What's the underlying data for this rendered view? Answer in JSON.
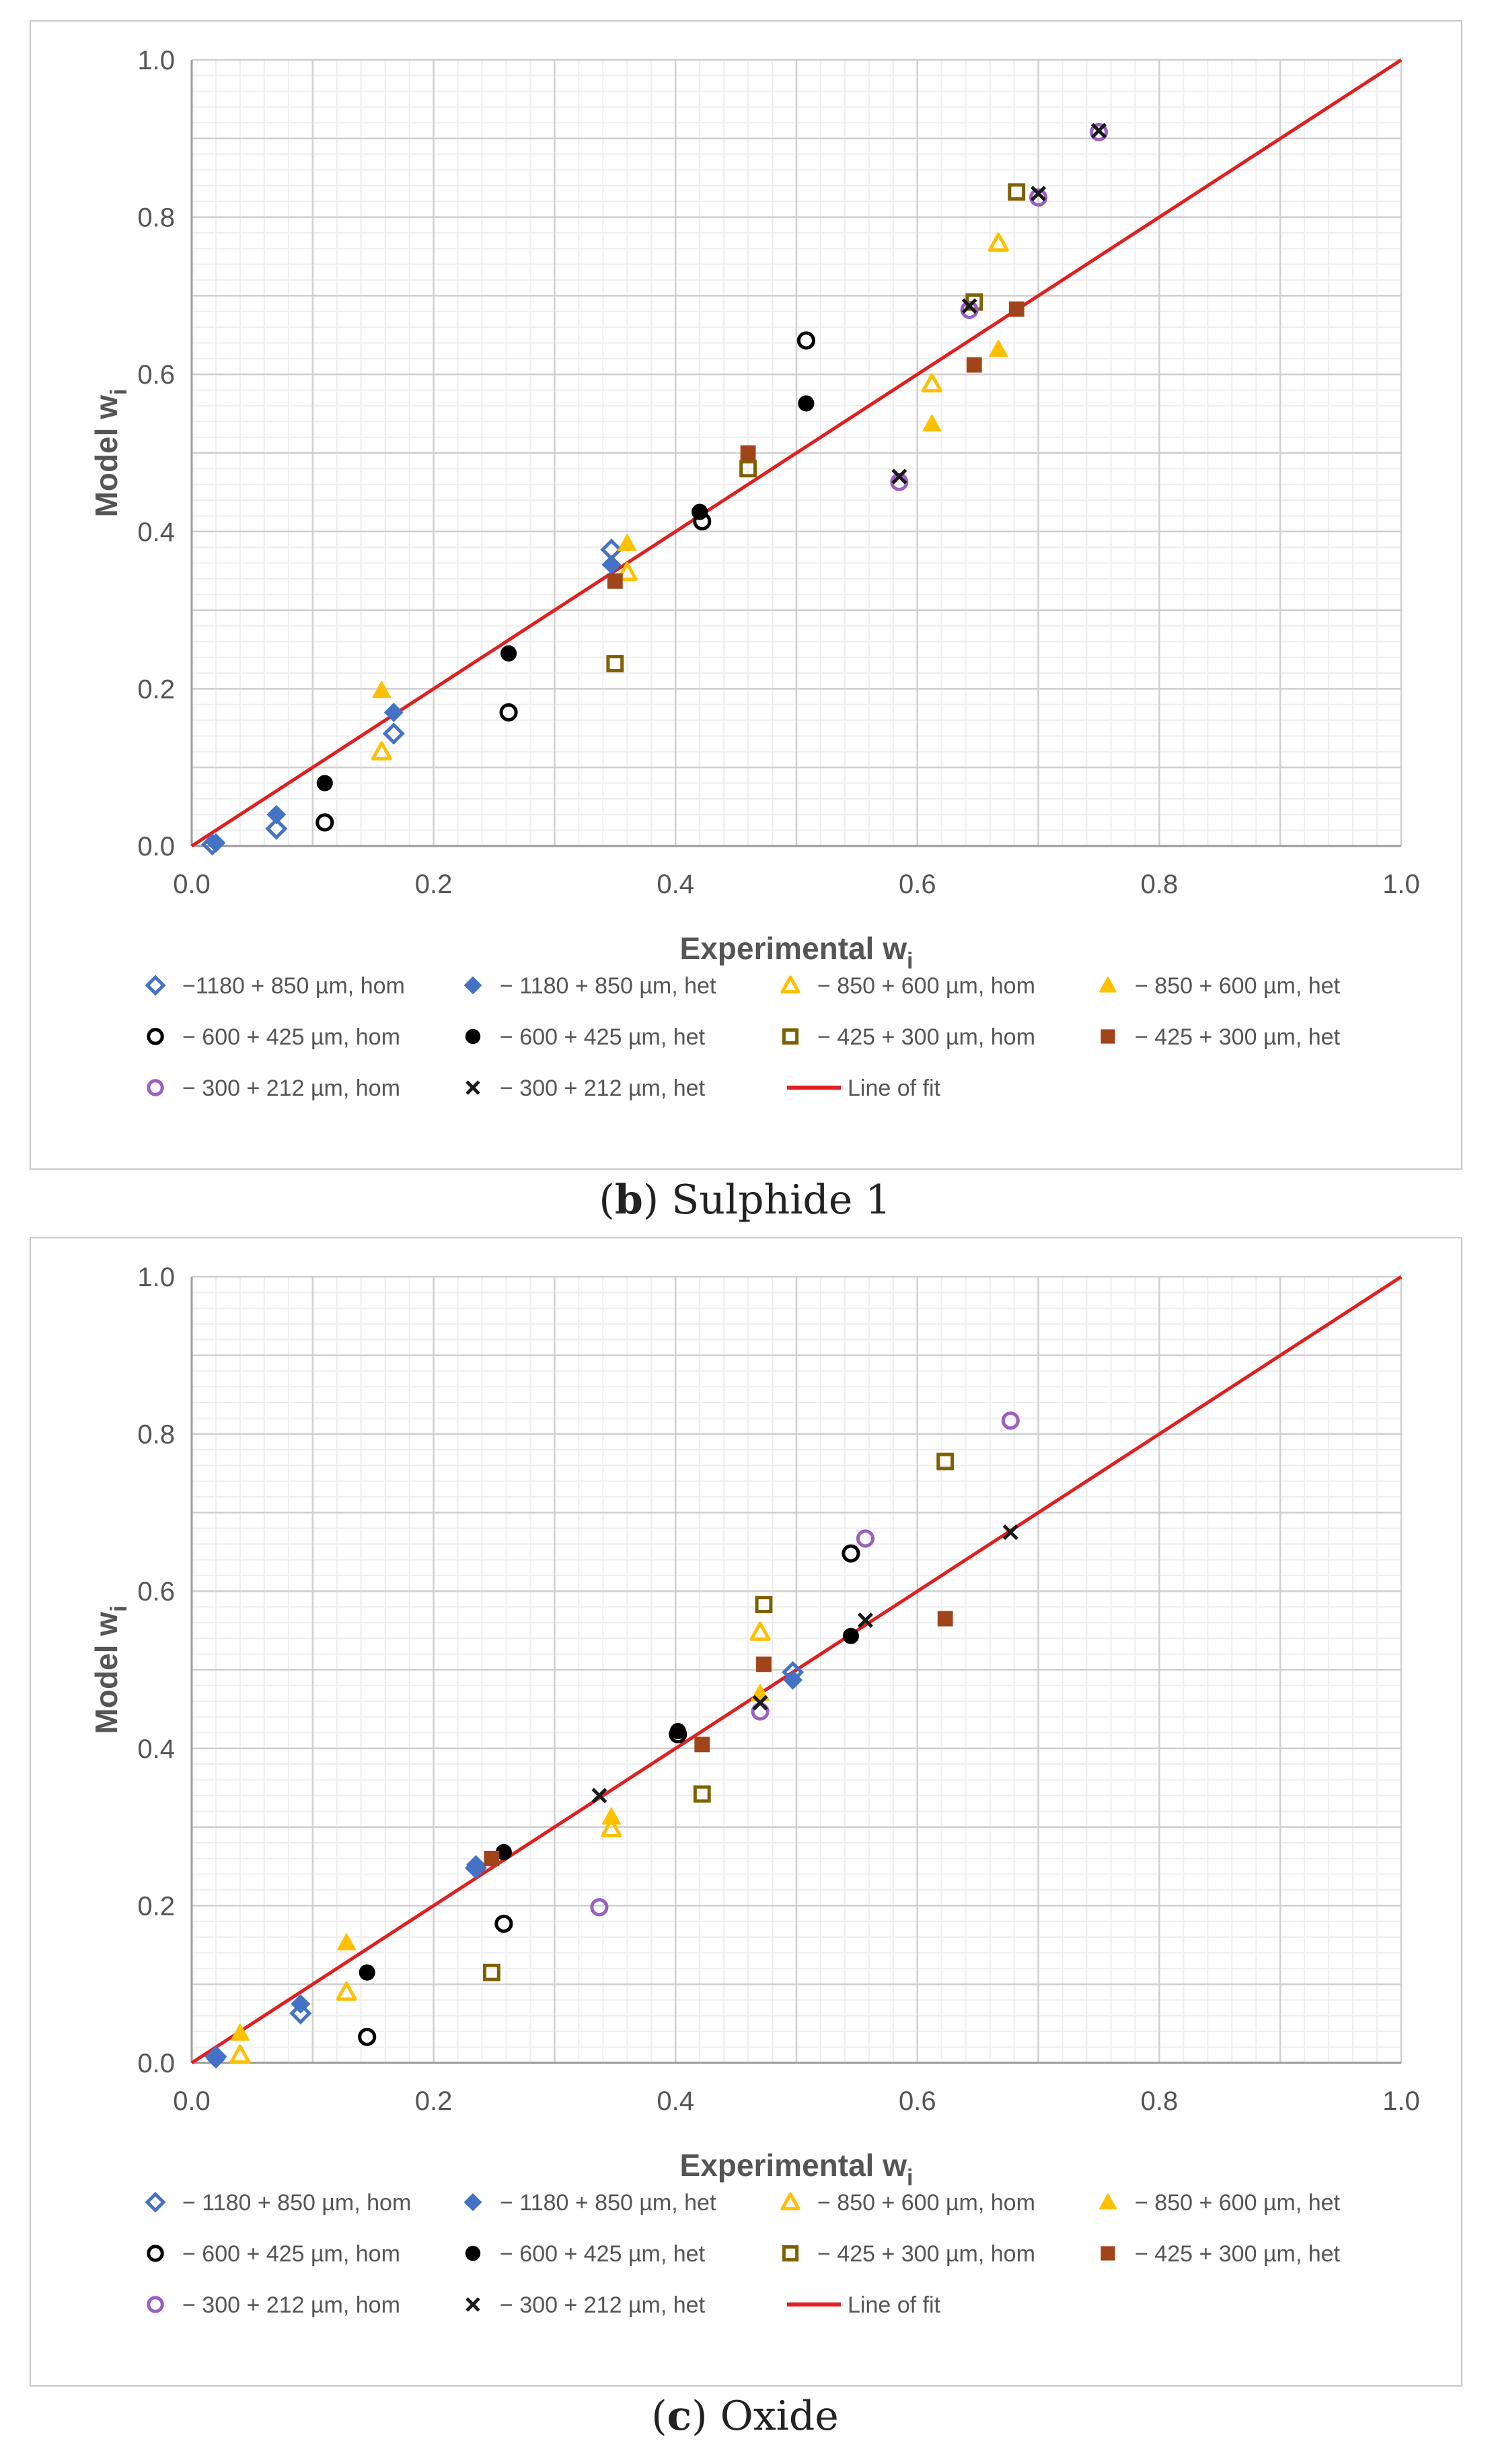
{
  "captions": {
    "b": {
      "letter": "b",
      "text": "Sulphide 1"
    },
    "c": {
      "letter": "c",
      "text": "Oxide"
    }
  },
  "series_styles": [
    {
      "color": "#4472c4",
      "shape": "diamond",
      "filled": false
    },
    {
      "color": "#4472c4",
      "shape": "diamond",
      "filled": true
    },
    {
      "color": "#ffc000",
      "shape": "triangle",
      "filled": false
    },
    {
      "color": "#ffc000",
      "shape": "triangle",
      "filled": true
    },
    {
      "color": "#000000",
      "shape": "circle",
      "filled": false
    },
    {
      "color": "#000000",
      "shape": "circle",
      "filled": true
    },
    {
      "color": "#7f6000",
      "shape": "square",
      "filled": false
    },
    {
      "color": "#a0441a",
      "shape": "square",
      "filled": true
    },
    {
      "color": "#9b5fc0",
      "shape": "circle",
      "filled": false
    },
    {
      "color": "#1a1a1a",
      "shape": "x",
      "filled": false
    }
  ],
  "fit_line": {
    "name": "Line of fit",
    "color": "#e02020",
    "x": [
      0,
      1
    ],
    "y": [
      0,
      1
    ]
  },
  "chart_data": [
    {
      "type": "scatter",
      "title": "",
      "xlabel": "Experimental w",
      "ylabel": "Model w",
      "label_subscript": "i",
      "xlim": [
        0,
        1
      ],
      "ylim": [
        0,
        1
      ],
      "xticks": [
        "0.0",
        "0.2",
        "0.4",
        "0.6",
        "0.8",
        "1.0"
      ],
      "yticks": [
        "0.0",
        "0.2",
        "0.4",
        "0.6",
        "0.8",
        "1.0"
      ],
      "grid": true,
      "legend_position": "bottom",
      "series": [
        {
          "name": "−1180 + 850 µm, hom",
          "points": [
            [
              0.017,
              0.002
            ],
            [
              0.07,
              0.022
            ],
            [
              0.167,
              0.143
            ],
            [
              0.347,
              0.377
            ]
          ]
        },
        {
          "name": "− 1180 + 850 µm, het",
          "points": [
            [
              0.02,
              0.004
            ],
            [
              0.07,
              0.04
            ],
            [
              0.167,
              0.17
            ],
            [
              0.347,
              0.358
            ]
          ]
        },
        {
          "name": "− 850 + 600 µm, hom",
          "points": [
            [
              0.157,
              0.12
            ],
            [
              0.36,
              0.348
            ],
            [
              0.612,
              0.588
            ],
            [
              0.667,
              0.767
            ]
          ]
        },
        {
          "name": "− 850 + 600 µm, het",
          "points": [
            [
              0.157,
              0.198
            ],
            [
              0.36,
              0.385
            ],
            [
              0.612,
              0.537
            ],
            [
              0.667,
              0.632
            ]
          ]
        },
        {
          "name": "− 600 + 425 µm, hom",
          "points": [
            [
              0.11,
              0.03
            ],
            [
              0.262,
              0.17
            ],
            [
              0.422,
              0.413
            ],
            [
              0.508,
              0.643
            ]
          ]
        },
        {
          "name": "− 600 + 425 µm, het",
          "points": [
            [
              0.11,
              0.08
            ],
            [
              0.262,
              0.245
            ],
            [
              0.42,
              0.425
            ],
            [
              0.508,
              0.563
            ]
          ]
        },
        {
          "name": "− 425 + 300 µm, hom",
          "points": [
            [
              0.35,
              0.232
            ],
            [
              0.46,
              0.48
            ],
            [
              0.647,
              0.692
            ],
            [
              0.682,
              0.832
            ]
          ]
        },
        {
          "name": "− 425 + 300 µm, het",
          "points": [
            [
              0.35,
              0.337
            ],
            [
              0.46,
              0.5
            ],
            [
              0.647,
              0.612
            ],
            [
              0.682,
              0.683
            ]
          ]
        },
        {
          "name": "− 300 + 212 µm, hom",
          "points": [
            [
              0.585,
              0.463
            ],
            [
              0.643,
              0.682
            ],
            [
              0.7,
              0.825
            ],
            [
              0.75,
              0.908
            ]
          ]
        },
        {
          "name": "− 300 + 212 µm, het",
          "points": [
            [
              0.585,
              0.47
            ],
            [
              0.643,
              0.687
            ],
            [
              0.7,
              0.83
            ],
            [
              0.75,
              0.91
            ]
          ]
        }
      ]
    },
    {
      "type": "scatter",
      "title": "",
      "xlabel": "Experimental w",
      "ylabel": "Model w",
      "label_subscript": "i",
      "xlim": [
        0,
        1
      ],
      "ylim": [
        0,
        1
      ],
      "xticks": [
        "0.0",
        "0.2",
        "0.4",
        "0.6",
        "0.8",
        "1.0"
      ],
      "yticks": [
        "0.0",
        "0.2",
        "0.4",
        "0.6",
        "0.8",
        "1.0"
      ],
      "grid": true,
      "legend_position": "bottom",
      "series": [
        {
          "name": "− 1180 + 850 µm, hom",
          "points": [
            [
              0.02,
              0.008
            ],
            [
              0.09,
              0.063
            ],
            [
              0.235,
              0.248
            ],
            [
              0.497,
              0.497
            ]
          ]
        },
        {
          "name": "− 1180 + 850 µm, het",
          "points": [
            [
              0.02,
              0.005
            ],
            [
              0.09,
              0.075
            ],
            [
              0.235,
              0.252
            ],
            [
              0.497,
              0.487
            ]
          ]
        },
        {
          "name": "− 850 + 600 µm, hom",
          "points": [
            [
              0.04,
              0.01
            ],
            [
              0.128,
              0.09
            ],
            [
              0.347,
              0.298
            ],
            [
              0.47,
              0.548
            ]
          ]
        },
        {
          "name": "− 850 + 600 µm, het",
          "points": [
            [
              0.04,
              0.038
            ],
            [
              0.128,
              0.153
            ],
            [
              0.347,
              0.313
            ],
            [
              0.47,
              0.47
            ]
          ]
        },
        {
          "name": "− 600 + 425 µm, hom",
          "points": [
            [
              0.145,
              0.033
            ],
            [
              0.258,
              0.177
            ],
            [
              0.402,
              0.418
            ],
            [
              0.545,
              0.648
            ]
          ]
        },
        {
          "name": "− 600 + 425 µm, het",
          "points": [
            [
              0.145,
              0.115
            ],
            [
              0.258,
              0.268
            ],
            [
              0.402,
              0.422
            ],
            [
              0.545,
              0.543
            ]
          ]
        },
        {
          "name": "− 425 + 300 µm, hom",
          "points": [
            [
              0.248,
              0.115
            ],
            [
              0.422,
              0.342
            ],
            [
              0.473,
              0.583
            ],
            [
              0.623,
              0.765
            ]
          ]
        },
        {
          "name": "− 425 + 300 µm, het",
          "points": [
            [
              0.248,
              0.26
            ],
            [
              0.422,
              0.405
            ],
            [
              0.473,
              0.507
            ],
            [
              0.623,
              0.565
            ]
          ]
        },
        {
          "name": "− 300 + 212 µm, hom",
          "points": [
            [
              0.337,
              0.198
            ],
            [
              0.47,
              0.447
            ],
            [
              0.557,
              0.667
            ],
            [
              0.677,
              0.817
            ]
          ]
        },
        {
          "name": "− 300 + 212 µm, het",
          "points": [
            [
              0.337,
              0.34
            ],
            [
              0.47,
              0.458
            ],
            [
              0.557,
              0.563
            ],
            [
              0.677,
              0.675
            ]
          ]
        }
      ]
    }
  ]
}
